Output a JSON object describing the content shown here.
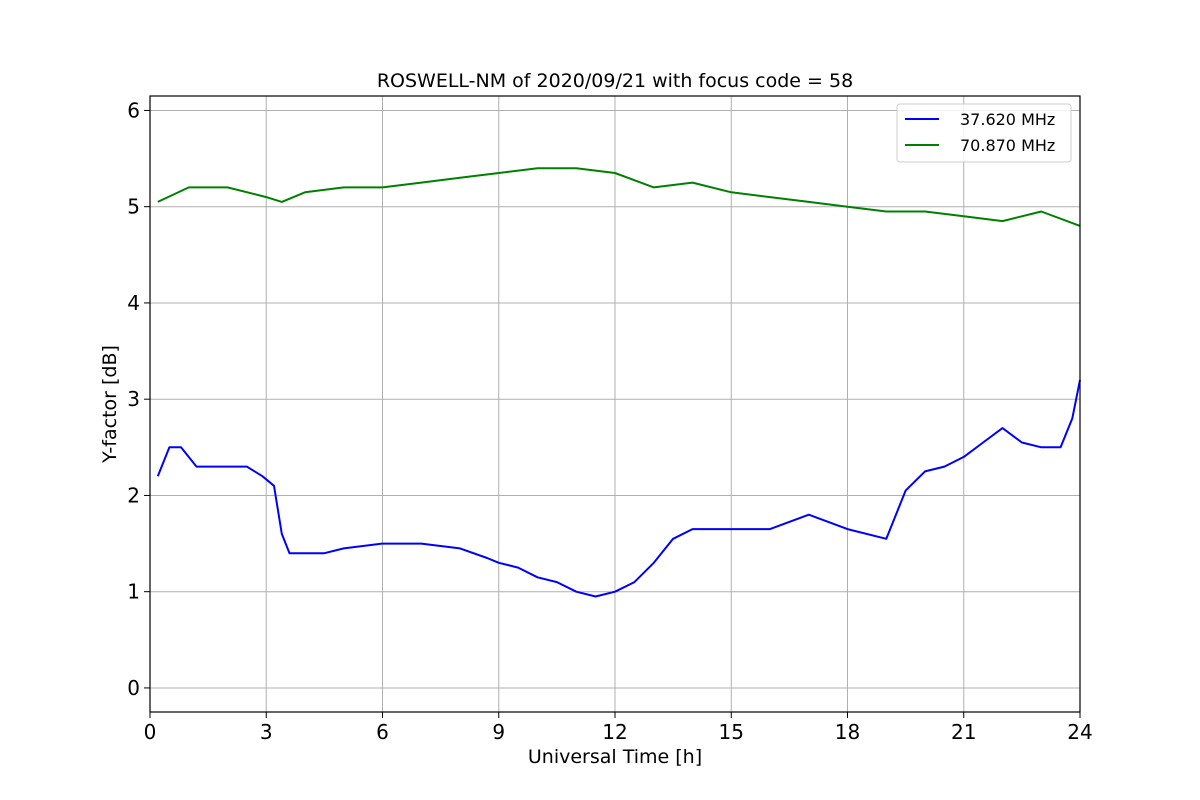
{
  "chart_data": {
    "type": "line",
    "title": "ROSWELL-NM of 2020/09/21 with focus code = 58",
    "xlabel": "Universal Time [h]",
    "ylabel": "Y-factor [dB]",
    "xlim": [
      0,
      24
    ],
    "ylim": [
      -0.25,
      6.15
    ],
    "xticks": [
      0,
      3,
      6,
      9,
      12,
      15,
      18,
      21,
      24
    ],
    "yticks": [
      0,
      1,
      2,
      3,
      4,
      5,
      6
    ],
    "grid": true,
    "legend_position": "top-right",
    "series": [
      {
        "name": "37.620 MHz",
        "color": "#0000ff",
        "x": [
          0.2,
          0.5,
          0.8,
          1.2,
          1.5,
          2.0,
          2.5,
          2.9,
          3.2,
          3.4,
          3.6,
          4.0,
          4.5,
          5.0,
          6.0,
          7.0,
          8.0,
          8.7,
          9.0,
          9.5,
          10.0,
          10.5,
          11.0,
          11.5,
          12.0,
          12.5,
          13.0,
          13.5,
          14.0,
          14.5,
          15.0,
          16.0,
          17.0,
          18.0,
          19.0,
          19.5,
          20.0,
          20.5,
          21.0,
          21.5,
          22.0,
          22.5,
          23.0,
          23.5,
          23.8,
          24.0
        ],
        "values": [
          2.2,
          2.5,
          2.5,
          2.3,
          2.3,
          2.3,
          2.3,
          2.2,
          2.1,
          1.6,
          1.4,
          1.4,
          1.4,
          1.45,
          1.5,
          1.5,
          1.45,
          1.35,
          1.3,
          1.25,
          1.15,
          1.1,
          1.0,
          0.95,
          1.0,
          1.1,
          1.3,
          1.55,
          1.65,
          1.65,
          1.65,
          1.65,
          1.8,
          1.65,
          1.55,
          2.05,
          2.25,
          2.3,
          2.4,
          2.55,
          2.7,
          2.55,
          2.5,
          2.5,
          2.8,
          3.2
        ]
      },
      {
        "name": "70.870 MHz",
        "color": "#008000",
        "x": [
          0.2,
          1.0,
          2.0,
          3.0,
          3.4,
          4.0,
          5.0,
          6.0,
          7.0,
          8.0,
          9.0,
          10.0,
          11.0,
          12.0,
          13.0,
          14.0,
          15.0,
          16.0,
          17.0,
          18.0,
          19.0,
          20.0,
          21.0,
          22.0,
          23.0,
          24.0
        ],
        "values": [
          5.05,
          5.2,
          5.2,
          5.1,
          5.05,
          5.15,
          5.2,
          5.2,
          5.25,
          5.3,
          5.35,
          5.4,
          5.4,
          5.35,
          5.2,
          5.25,
          5.15,
          5.1,
          5.05,
          5.0,
          4.95,
          4.95,
          4.9,
          4.85,
          4.95,
          4.8
        ]
      }
    ]
  }
}
